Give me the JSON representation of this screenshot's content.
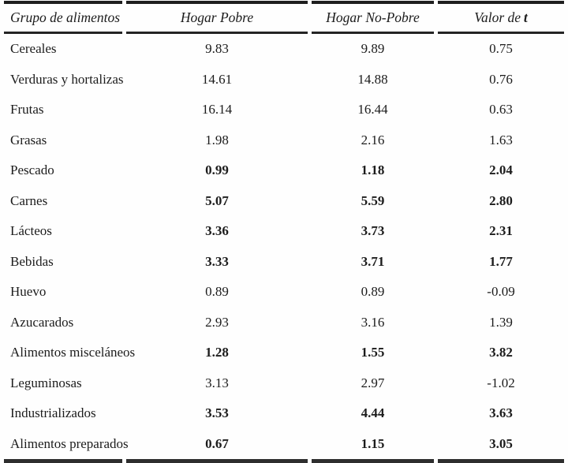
{
  "colors": {
    "text": "#1c1c1c",
    "rule": "#1e1e1e",
    "background": "#fefefe"
  },
  "table": {
    "columns": [
      {
        "label": "Grupo de alimentos"
      },
      {
        "label": "Hogar Pobre"
      },
      {
        "label": "Hogar No-Pobre"
      },
      {
        "label_prefix": "Valor de",
        "label_t": "t"
      }
    ],
    "rows": [
      {
        "grupo": "Cereales",
        "hogar_pobre": "9.83",
        "hogar_no_pobre": "9.89",
        "valor_t": "0.75",
        "bold": false
      },
      {
        "grupo": "Verduras y hortalizas",
        "hogar_pobre": "14.61",
        "hogar_no_pobre": "14.88",
        "valor_t": "0.76",
        "bold": false
      },
      {
        "grupo": "Frutas",
        "hogar_pobre": "16.14",
        "hogar_no_pobre": "16.44",
        "valor_t": "0.63",
        "bold": false
      },
      {
        "grupo": "Grasas",
        "hogar_pobre": "1.98",
        "hogar_no_pobre": "2.16",
        "valor_t": "1.63",
        "bold": false
      },
      {
        "grupo": "Pescado",
        "hogar_pobre": "0.99",
        "hogar_no_pobre": "1.18",
        "valor_t": "2.04",
        "bold": true
      },
      {
        "grupo": "Carnes",
        "hogar_pobre": "5.07",
        "hogar_no_pobre": "5.59",
        "valor_t": "2.80",
        "bold": true
      },
      {
        "grupo": "Lácteos",
        "hogar_pobre": "3.36",
        "hogar_no_pobre": "3.73",
        "valor_t": "2.31",
        "bold": true
      },
      {
        "grupo": "Bebidas",
        "hogar_pobre": "3.33",
        "hogar_no_pobre": "3.71",
        "valor_t": "1.77",
        "bold": true
      },
      {
        "grupo": "Huevo",
        "hogar_pobre": "0.89",
        "hogar_no_pobre": "0.89",
        "valor_t": "-0.09",
        "bold": false
      },
      {
        "grupo": "Azucarados",
        "hogar_pobre": "2.93",
        "hogar_no_pobre": "3.16",
        "valor_t": "1.39",
        "bold": false
      },
      {
        "grupo": "Alimentos misceláneos",
        "hogar_pobre": "1.28",
        "hogar_no_pobre": "1.55",
        "valor_t": "3.82",
        "bold": true
      },
      {
        "grupo": "Leguminosas",
        "hogar_pobre": "3.13",
        "hogar_no_pobre": "2.97",
        "valor_t": "-1.02",
        "bold": false
      },
      {
        "grupo": "Industrializados",
        "hogar_pobre": "3.53",
        "hogar_no_pobre": "4.44",
        "valor_t": "3.63",
        "bold": true
      },
      {
        "grupo": "Alimentos preparados",
        "hogar_pobre": "0.67",
        "hogar_no_pobre": "1.15",
        "valor_t": "3.05",
        "bold": true
      }
    ]
  }
}
